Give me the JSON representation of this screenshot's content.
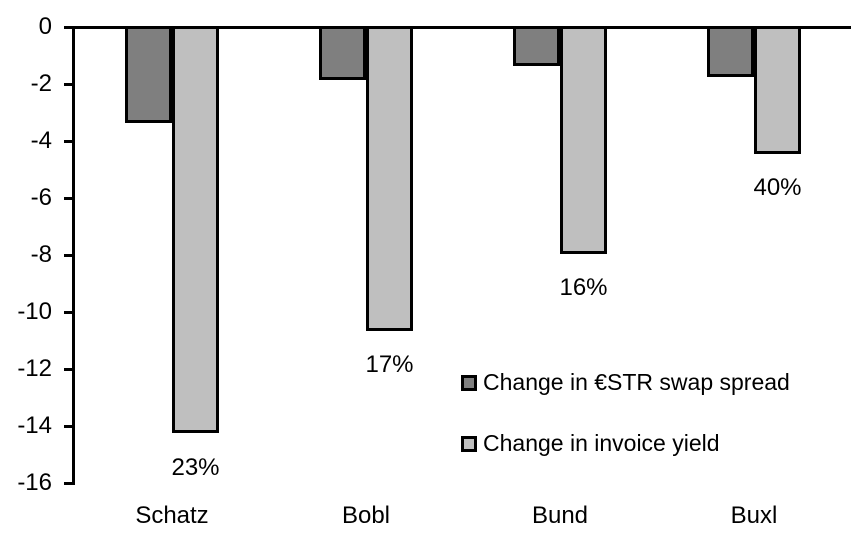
{
  "chart_data": {
    "type": "bar",
    "title": "",
    "xlabel": "",
    "ylabel": "",
    "categories": [
      "Schatz",
      "Bobl",
      "Bund",
      "Buxl"
    ],
    "series": [
      {
        "name": "Change in €STR swap spread",
        "color": "#7f7f7f",
        "values": [
          -3.3,
          -1.8,
          -1.3,
          -1.7
        ]
      },
      {
        "name": "Change in invoice yield",
        "color": "#bfbfbf",
        "values": [
          -14.2,
          -10.6,
          -7.9,
          -4.4
        ],
        "data_labels": [
          "23%",
          "17%",
          "16%",
          "40%"
        ]
      }
    ],
    "y_axis": {
      "min": -16,
      "max": 0,
      "tick_step": 2,
      "ticks": [
        0,
        -2,
        -4,
        -6,
        -8,
        -10,
        -12,
        -14,
        -16
      ],
      "tick_labels": [
        "0",
        "-2",
        "-4",
        "-6",
        "-8",
        "-10",
        "-12",
        "-14",
        "-16"
      ]
    },
    "grid": false,
    "legend_position": "inside-right",
    "bar_border_color": "#000000",
    "axis_color": "#000000",
    "background_color": "#ffffff"
  }
}
